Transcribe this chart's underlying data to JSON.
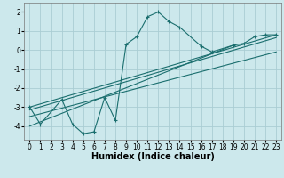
{
  "xlabel": "Humidex (Indice chaleur)",
  "xlim": [
    -0.5,
    23.5
  ],
  "ylim": [
    -4.7,
    2.5
  ],
  "bg_color": "#cce8ec",
  "grid_color": "#aacdd4",
  "line_color": "#1a6e6e",
  "zigzag": {
    "x": [
      0,
      1,
      3,
      4,
      5,
      6,
      7,
      8,
      9,
      10,
      11,
      12,
      13,
      14,
      16,
      17,
      19,
      20,
      21,
      22,
      23
    ],
    "y": [
      -3.0,
      -3.9,
      -2.6,
      -3.9,
      -4.4,
      -4.3,
      -2.5,
      -3.7,
      0.3,
      0.7,
      1.75,
      2.0,
      1.5,
      1.2,
      0.2,
      -0.1,
      0.25,
      0.35,
      0.7,
      0.8,
      0.8
    ]
  },
  "trend_lines": [
    {
      "x": [
        0,
        23
      ],
      "y": [
        -3.0,
        0.8
      ]
    },
    {
      "x": [
        0,
        23
      ],
      "y": [
        -3.15,
        0.65
      ]
    },
    {
      "x": [
        0,
        23
      ],
      "y": [
        -3.5,
        -0.1
      ]
    },
    {
      "x": [
        0,
        19
      ],
      "y": [
        -4.0,
        0.25
      ]
    }
  ],
  "xticks": [
    0,
    1,
    2,
    3,
    4,
    5,
    6,
    7,
    8,
    9,
    10,
    11,
    12,
    13,
    14,
    15,
    16,
    17,
    18,
    19,
    20,
    21,
    22,
    23
  ],
  "yticks": [
    -4,
    -3,
    -2,
    -1,
    0,
    1,
    2
  ],
  "tick_fontsize": 5.5,
  "xlabel_fontsize": 7
}
